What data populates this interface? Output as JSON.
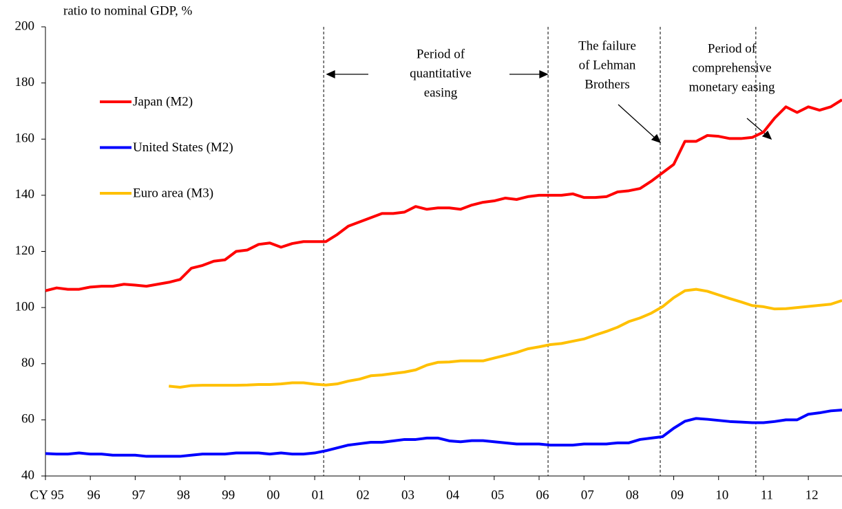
{
  "chart_data": {
    "type": "line",
    "y_label": "ratio to nominal GDP, %",
    "x": [
      1995,
      1995.25,
      1995.5,
      1995.75,
      1996,
      1996.25,
      1996.5,
      1996.75,
      1997,
      1997.25,
      1997.5,
      1997.75,
      1998,
      1998.25,
      1998.5,
      1998.75,
      1999,
      1999.25,
      1999.5,
      1999.75,
      2000,
      2000.25,
      2000.5,
      2000.75,
      2001,
      2001.25,
      2001.5,
      2001.75,
      2002,
      2002.25,
      2002.5,
      2002.75,
      2003,
      2003.25,
      2003.5,
      2003.75,
      2004,
      2004.25,
      2004.5,
      2004.75,
      2005,
      2005.25,
      2005.5,
      2005.75,
      2006,
      2006.25,
      2006.5,
      2006.75,
      2007,
      2007.25,
      2007.5,
      2007.75,
      2008,
      2008.25,
      2008.5,
      2008.75,
      2009,
      2009.25,
      2009.5,
      2009.75,
      2010,
      2010.25,
      2010.5,
      2010.75,
      2011,
      2011.25,
      2011.5,
      2011.75,
      2012,
      2012.25,
      2012.5,
      2012.75
    ],
    "series": [
      {
        "name": "Japan (M2)",
        "color": "#ff0000",
        "values": [
          106,
          107,
          106.5,
          106.5,
          107.3,
          107.6,
          107.6,
          108.3,
          108,
          107.6,
          108.3,
          109,
          110,
          114,
          115,
          116.5,
          117,
          120,
          120.5,
          122.5,
          123,
          121.5,
          122.8,
          123.5,
          123.5,
          123.5,
          126,
          129,
          130.5,
          132,
          133.5,
          133.5,
          134,
          136,
          135,
          135.5,
          135.5,
          135,
          136.5,
          137.5,
          138,
          139,
          138.5,
          139.5,
          140,
          140,
          140,
          140.5,
          139.2,
          139.2,
          139.5,
          141.2,
          141.6,
          142.4,
          145,
          148,
          151,
          159.2,
          159.2,
          161.3,
          161,
          160.2,
          160.2,
          160.6,
          162.5,
          167.5,
          171.5,
          169.5,
          171.5,
          170.3,
          171.5,
          174
        ]
      },
      {
        "name": "United States (M2)",
        "color": "#0000ff",
        "values": [
          48,
          47.8,
          47.8,
          48.2,
          47.8,
          47.8,
          47.4,
          47.4,
          47.4,
          47,
          47,
          47,
          47,
          47.4,
          47.8,
          47.8,
          47.8,
          48.2,
          48.2,
          48.2,
          47.8,
          48.2,
          47.8,
          47.8,
          48.2,
          49,
          50,
          51,
          51.5,
          52,
          52,
          52.5,
          53,
          53,
          53.5,
          53.5,
          52.5,
          52.2,
          52.6,
          52.6,
          52.2,
          51.8,
          51.4,
          51.4,
          51.4,
          51,
          51,
          51,
          51.4,
          51.4,
          51.4,
          51.8,
          51.8,
          53,
          53.5,
          54,
          57,
          59.5,
          60.5,
          60.2,
          59.8,
          59.4,
          59.2,
          59,
          59,
          59.4,
          60,
          60,
          62,
          62.5,
          63.2,
          63.5
        ]
      },
      {
        "name": "Euro area (M3)",
        "color": "#ffc000",
        "values": [
          null,
          null,
          null,
          null,
          null,
          null,
          null,
          null,
          null,
          null,
          null,
          72,
          71.6,
          72.2,
          72.3,
          72.3,
          72.3,
          72.3,
          72.4,
          72.6,
          72.6,
          72.8,
          73.2,
          73.2,
          72.7,
          72.4,
          72.8,
          73.8,
          74.5,
          75.7,
          76,
          76.5,
          77,
          77.8,
          79.5,
          80.5,
          80.6,
          81,
          81,
          81,
          82,
          83,
          84,
          85.3,
          86,
          86.8,
          87.2,
          88,
          88.8,
          90.2,
          91.5,
          93,
          95,
          96.3,
          98,
          100.3,
          103.5,
          106,
          106.5,
          105.8,
          104.5,
          103.2,
          102,
          100.7,
          100.3,
          99.5,
          99.6,
          100,
          100.4,
          100.8,
          101.2,
          102.5
        ]
      }
    ],
    "xlim": [
      1995,
      2012.75
    ],
    "xticks": [
      {
        "value": 1995,
        "label": "CY 95"
      },
      {
        "value": 1996,
        "label": "96"
      },
      {
        "value": 1997,
        "label": "97"
      },
      {
        "value": 1998,
        "label": "98"
      },
      {
        "value": 1999,
        "label": "99"
      },
      {
        "value": 2000,
        "label": "00"
      },
      {
        "value": 2001,
        "label": "01"
      },
      {
        "value": 2002,
        "label": "02"
      },
      {
        "value": 2003,
        "label": "03"
      },
      {
        "value": 2004,
        "label": "04"
      },
      {
        "value": 2005,
        "label": "05"
      },
      {
        "value": 2006,
        "label": "06"
      },
      {
        "value": 2007,
        "label": "07"
      },
      {
        "value": 2008,
        "label": "08"
      },
      {
        "value": 2009,
        "label": "09"
      },
      {
        "value": 2010,
        "label": "10"
      },
      {
        "value": 2011,
        "label": "11"
      },
      {
        "value": 2012,
        "label": "12"
      }
    ],
    "ylim": [
      40,
      200
    ],
    "yticks": [
      40,
      60,
      80,
      100,
      120,
      140,
      160,
      180,
      200
    ],
    "vlines": [
      2001.2,
      2006.2,
      2008.7,
      2010.83
    ],
    "annotations": [
      {
        "lines": [
          "Period of",
          "quantitative",
          "easing"
        ]
      },
      {
        "lines": [
          "The failure",
          "of Lehman",
          "Brothers"
        ]
      },
      {
        "lines": [
          "Period of",
          "comprehensive",
          "monetary easing"
        ]
      }
    ]
  }
}
